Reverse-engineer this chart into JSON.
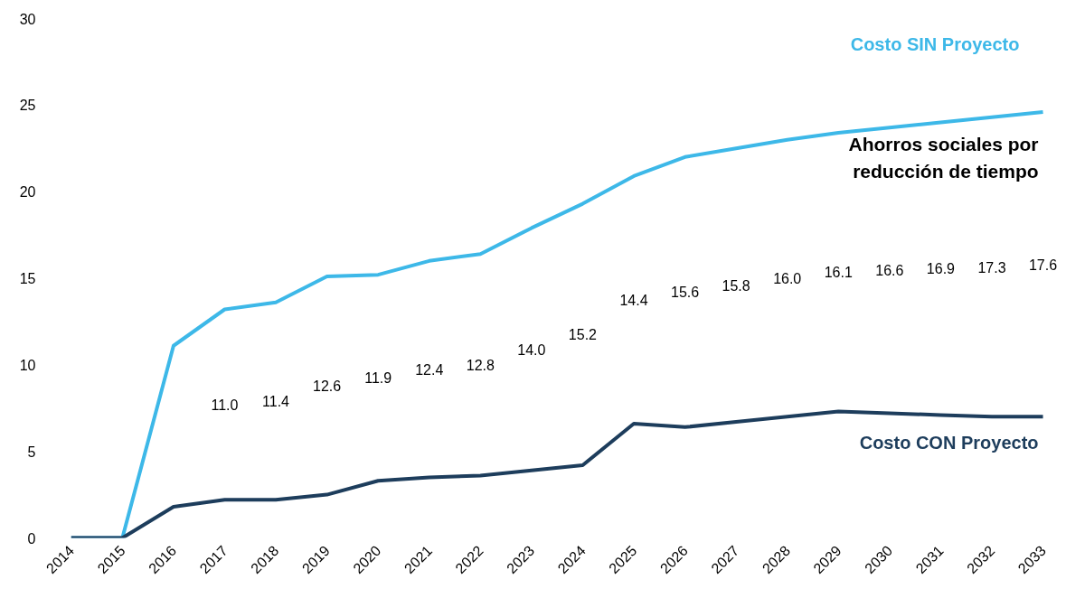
{
  "chart_data": {
    "type": "line",
    "x": [
      2014,
      2015,
      2016,
      2017,
      2018,
      2019,
      2020,
      2021,
      2022,
      2023,
      2024,
      2025,
      2026,
      2027,
      2028,
      2029,
      2030,
      2031,
      2032,
      2033
    ],
    "series": [
      {
        "name": "Costo SIN Proyecto",
        "color": "#3db8e8",
        "values": [
          0,
          0,
          11.1,
          13.2,
          13.6,
          15.1,
          15.2,
          16.0,
          16.4,
          17.9,
          19.3,
          20.9,
          22.0,
          22.5,
          23.0,
          23.4,
          23.7,
          24.0,
          24.3,
          24.6
        ]
      },
      {
        "name": "Costo CON Proyecto",
        "color": "#1d3d5c",
        "values": [
          0,
          0,
          1.8,
          2.2,
          2.2,
          2.5,
          3.3,
          3.5,
          3.6,
          3.9,
          4.2,
          6.6,
          6.4,
          6.7,
          7.0,
          7.3,
          7.2,
          7.1,
          7.0,
          7.0
        ]
      }
    ],
    "xlim": [
      2014,
      2033
    ],
    "xticks": [
      2014,
      2015,
      2016,
      2017,
      2018,
      2019,
      2020,
      2021,
      2022,
      2023,
      2024,
      2025,
      2026,
      2027,
      2028,
      2029,
      2030,
      2031,
      2032,
      2033
    ],
    "ylim": [
      0,
      30
    ],
    "yticks": [
      0,
      5,
      10,
      15,
      20,
      25,
      30
    ],
    "grid": false,
    "annotations": [
      "Ahorros sociales por reducción de tiempo",
      "11.0",
      "11.4",
      "12.6",
      "11.9",
      "12.4",
      "12.8",
      "14.0",
      "15.2",
      "14.4",
      "15.6",
      "15.8",
      "16.0",
      "16.1",
      "16.6",
      "16.9",
      "17.3",
      "17.6"
    ]
  }
}
